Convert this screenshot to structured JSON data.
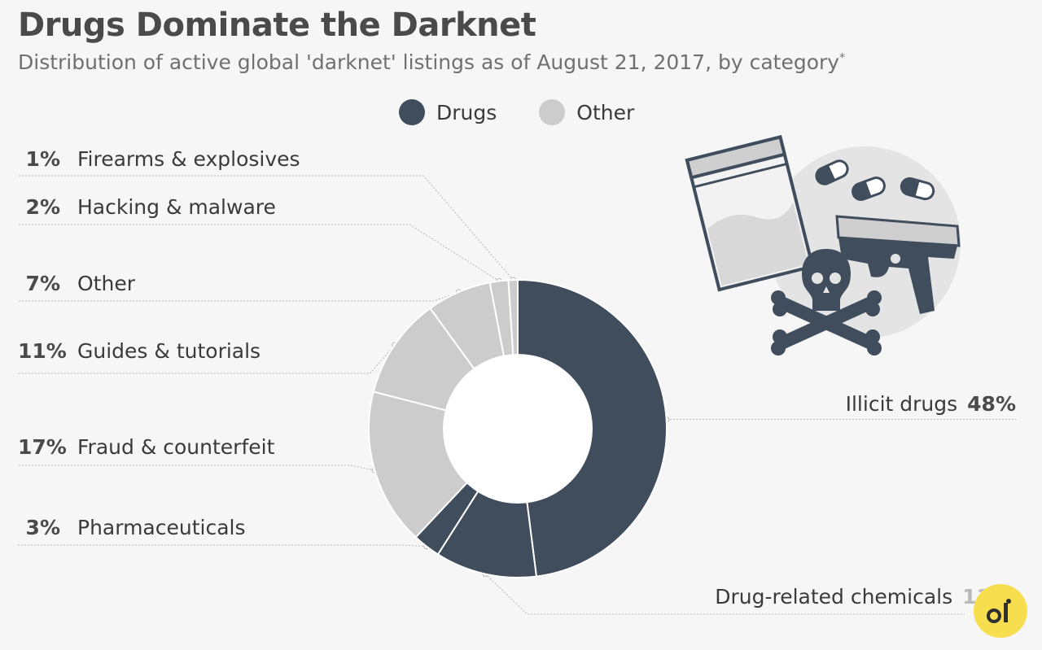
{
  "title": "Drugs Dominate the Darknet",
  "subtitle": "Distribution of active global 'darknet' listings as of August 21, 2017, by category",
  "subtitle_mark": "*",
  "legend": [
    {
      "label": "Drugs",
      "color": "#404d5d"
    },
    {
      "label": "Other",
      "color": "#cccccc"
    }
  ],
  "chart_data": {
    "type": "donut",
    "title": "Drugs Dominate the Darknet",
    "slices": [
      {
        "label": "Illicit drugs",
        "value": 48,
        "pct_label": "48%",
        "group": "Drugs"
      },
      {
        "label": "Drug-related chemicals",
        "value": 11,
        "pct_label": "11%",
        "group": "Drugs"
      },
      {
        "label": "Pharmaceuticals",
        "value": 3,
        "pct_label": "3%",
        "group": "Drugs"
      },
      {
        "label": "Fraud & counterfeit",
        "value": 17,
        "pct_label": "17%",
        "group": "Other"
      },
      {
        "label": "Guides & tutorials",
        "value": 11,
        "pct_label": "11%",
        "group": "Other"
      },
      {
        "label": "Other",
        "value": 7,
        "pct_label": "7%",
        "group": "Other"
      },
      {
        "label": "Hacking & malware",
        "value": 2,
        "pct_label": "2%",
        "group": "Other"
      },
      {
        "label": "Firearms & explosives",
        "value": 1,
        "pct_label": "1%",
        "group": "Other"
      }
    ],
    "colors": {
      "Drugs": "#404d5d",
      "Other": "#cccccc"
    }
  },
  "icons": [
    "drug-bag-icon",
    "pill-capsule-icon",
    "pistol-icon",
    "skull-crossbones-icon",
    "logo-badge-icon"
  ]
}
